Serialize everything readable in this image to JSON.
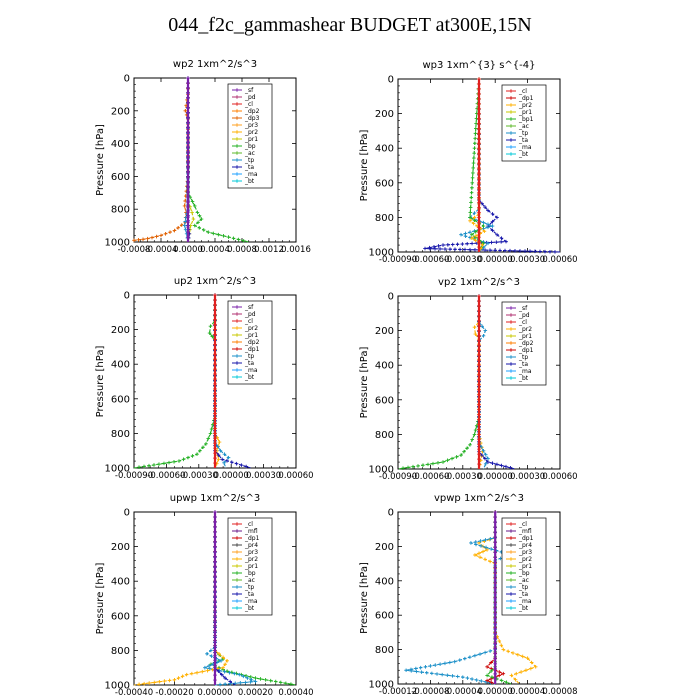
{
  "title": "044_f2c_gammashear  BUDGET at300E,15N",
  "colors": {
    "sf": "#7a1fa8",
    "pd": "#b03070",
    "cl": "#e02020",
    "dp1": "#cc0000",
    "dp2": "#ff7f00",
    "dp3": "#e06000",
    "dp4": "#cc2200",
    "pr1": "#c8c800",
    "pr2": "#ffb000",
    "pr3": "#ffa020",
    "bp": "#22b022",
    "bp1": "#22b022",
    "ac": "#5db82a",
    "tp": "#1a8fc8",
    "ta": "#1515aa",
    "ma": "#1ea0ff",
    "bt": "#00c8d8",
    "mfl": "#6a1a8a"
  },
  "chart_data": [
    {
      "id": "wp2",
      "type": "line",
      "title": "wp2   1xm^2/s^3",
      "ylabel": "Pressure [hPa]",
      "xlim": [
        -0.0008,
        0.0016
      ],
      "ylim": [
        1000,
        0
      ],
      "xticks": [
        "-0.0008",
        "-0.0004",
        "0.0000",
        "0.0004",
        "0.0008",
        "0.0012",
        "0.0016"
      ],
      "yticks": [
        "0",
        "200",
        "400",
        "600",
        "800",
        "1000"
      ],
      "legend": [
        "_sf",
        "_pd",
        "_cl",
        "_dp2",
        "_dp3",
        "_pr3",
        "_pr2",
        "_pr1",
        "_bp",
        "_ac",
        "_tp",
        "_ta",
        "_ma",
        "_bt"
      ],
      "series": [
        {
          "name": "_dp3",
          "color": "dp3",
          "p": [
            0,
            100,
            200,
            250,
            600,
            780,
            820,
            880,
            930,
            960,
            980,
            990,
            1000
          ],
          "v": [
            0,
            0,
            -4e-05,
            0,
            0,
            -5e-05,
            -3e-05,
            -4e-05,
            -0.0002,
            -0.0004,
            -0.0006,
            -0.0008,
            -0.0008
          ]
        },
        {
          "name": "_bp",
          "color": "bp",
          "p": [
            0,
            700,
            780,
            820,
            860,
            900,
            940,
            970,
            1000
          ],
          "v": [
            0,
            0,
            0.0001,
            0.00014,
            0.0002,
            0.0001,
            0.0003,
            0.0006,
            0.0009
          ]
        },
        {
          "name": "_pr1",
          "color": "pr1",
          "p": [
            0,
            750,
            820,
            860,
            900,
            950,
            1000
          ],
          "v": [
            0,
            0,
            6e-05,
            8e-05,
            4e-05,
            2e-05,
            0
          ]
        },
        {
          "name": "_tp",
          "color": "tp",
          "p": [
            0,
            800,
            850,
            900,
            950,
            1000
          ],
          "v": [
            0,
            0,
            -3e-05,
            -5e-05,
            -2e-05,
            0
          ]
        },
        {
          "name": "_ta",
          "color": "ta",
          "p": [
            0,
            900,
            950,
            1000
          ],
          "v": [
            0,
            0,
            2e-05,
            0
          ]
        },
        {
          "name": "_sf",
          "color": "sf",
          "p": [
            0,
            1000
          ],
          "v": [
            0,
            0
          ]
        }
      ]
    },
    {
      "id": "wp3",
      "type": "line",
      "title": "wp3   1xm^{3} s^{-4}",
      "ylabel": "Pressure [hPa]",
      "xlim": [
        -0.0009,
        0.0009
      ],
      "ylim": [
        1000,
        0
      ],
      "xticks": [
        "-0.00090",
        "-0.00060",
        "-0.00030",
        "0.00000",
        "0.00030",
        "0.00060"
      ],
      "yticks": [
        "0",
        "200",
        "400",
        "600",
        "800",
        "1000"
      ],
      "legend": [
        "_cl",
        "_dp1",
        "_pr2",
        "_pr1",
        "_bp1",
        "_ac",
        "_tp",
        "_ta",
        "_ma",
        "_bt"
      ],
      "series": [
        {
          "name": "_ta",
          "color": "ta",
          "p": [
            0,
            700,
            760,
            800,
            850,
            900,
            940,
            960,
            980,
            1000
          ],
          "v": [
            0,
            0,
            0.0001,
            0.0002,
            0.0001,
            0.0002,
            0.0003,
            -0.0004,
            -0.0006,
            0.0009
          ]
        },
        {
          "name": "_tp",
          "color": "tp",
          "p": [
            0,
            750,
            800,
            850,
            900,
            950,
            1000
          ],
          "v": [
            0,
            0,
            -0.0001,
            0.00015,
            -0.0002,
            0.0001,
            0
          ]
        },
        {
          "name": "_bp1",
          "color": "bp1",
          "p": [
            0,
            800,
            850,
            900,
            950,
            1000
          ],
          "v": [
            0,
            -0.0001,
            5e-05,
            -8e-05,
            5e-05,
            0
          ]
        },
        {
          "name": "_pr2",
          "color": "pr2",
          "p": [
            0,
            780,
            820,
            880,
            920,
            960,
            1000
          ],
          "v": [
            0,
            0,
            -0.0001,
            6e-05,
            -8e-05,
            4e-05,
            0
          ]
        },
        {
          "name": "_cl",
          "color": "cl",
          "p": [
            0,
            1000
          ],
          "v": [
            0,
            0
          ]
        }
      ]
    },
    {
      "id": "up2",
      "type": "line",
      "title": "up2   1xm^2/s^3",
      "ylabel": "Pressure [hPa]",
      "xlim": [
        -0.0009,
        0.0009
      ],
      "ylim": [
        1000,
        0
      ],
      "xticks": [
        "-0.00090",
        "-0.00060",
        "-0.00030",
        "0.00000",
        "0.00030",
        "0.00060"
      ],
      "yticks": [
        "0",
        "200",
        "400",
        "600",
        "800",
        "1000"
      ],
      "legend": [
        "_sf",
        "_pd",
        "_cl",
        "_pr2",
        "_pr1",
        "_dp2",
        "_dp1",
        "_tp",
        "_ta",
        "_ma",
        "_bt"
      ],
      "series": [
        {
          "name": "_dp2",
          "color": "bp",
          "p": [
            0,
            150,
            180,
            220,
            260,
            700,
            800,
            860,
            920,
            960,
            1000
          ],
          "v": [
            0,
            0,
            -5e-05,
            -6e-05,
            0,
            0,
            -5e-05,
            -0.0001,
            -0.0002,
            -0.0004,
            -0.0009
          ]
        },
        {
          "name": "_pr2",
          "color": "pr2",
          "p": [
            0,
            800,
            850,
            900,
            950,
            1000
          ],
          "v": [
            0,
            0,
            5e-05,
            2e-05,
            4e-05,
            0
          ]
        },
        {
          "name": "_tp",
          "color": "tp",
          "p": [
            0,
            850,
            900,
            940,
            970,
            1000
          ],
          "v": [
            0,
            0,
            6e-05,
            0.00015,
            0.0001,
            0.00012
          ]
        },
        {
          "name": "_ta",
          "color": "ta",
          "p": [
            0,
            900,
            950,
            1000
          ],
          "v": [
            0,
            0,
            8e-05,
            0.0004
          ]
        },
        {
          "name": "_sf",
          "color": "cl",
          "p": [
            0,
            1000
          ],
          "v": [
            0,
            0
          ]
        }
      ]
    },
    {
      "id": "vp2",
      "type": "line",
      "title": "vp2   1xm^2/s^3",
      "ylabel": "Pressure [hPa]",
      "xlim": [
        -0.0009,
        0.0009
      ],
      "ylim": [
        1000,
        0
      ],
      "xticks": [
        "-0.00090",
        "-0.00060",
        "-0.00030",
        "0.00000",
        "0.00030",
        "0.00060"
      ],
      "yticks": [
        "0",
        "200",
        "400",
        "600",
        "800",
        "1000"
      ],
      "legend": [
        "_sf",
        "_pd",
        "_cl",
        "_pr2",
        "_pr1",
        "_dp2",
        "_dp1",
        "_tp",
        "_ta",
        "_ma",
        "_bt"
      ],
      "series": [
        {
          "name": "_dp2",
          "color": "bp",
          "p": [
            0,
            700,
            800,
            860,
            920,
            960,
            1000
          ],
          "v": [
            0,
            0,
            -5e-05,
            -0.0001,
            -0.0002,
            -0.0004,
            -0.0009
          ]
        },
        {
          "name": "_pr2",
          "color": "pr2",
          "p": [
            0,
            150,
            180,
            220,
            250,
            800,
            900,
            950,
            1000
          ],
          "v": [
            0,
            0,
            -5e-05,
            -4e-05,
            0,
            0,
            4e-05,
            2e-05,
            0
          ]
        },
        {
          "name": "_tp",
          "color": "tp",
          "p": [
            0,
            150,
            200,
            230,
            260,
            850,
            940,
            1000
          ],
          "v": [
            0,
            0,
            7e-05,
            5e-05,
            0,
            0,
            0.0001,
            5e-05
          ]
        },
        {
          "name": "_ta",
          "color": "ta",
          "p": [
            0,
            900,
            960,
            1000
          ],
          "v": [
            0,
            0,
            0.0001,
            0.0004
          ]
        },
        {
          "name": "_sf",
          "color": "cl",
          "p": [
            0,
            1000
          ],
          "v": [
            0,
            0
          ]
        }
      ]
    },
    {
      "id": "upwp",
      "type": "line",
      "title": "upwp   1xm^2/s^3",
      "ylabel": "Pressure [hPa]",
      "xlim": [
        -0.0004,
        0.0004
      ],
      "ylim": [
        1000,
        0
      ],
      "xticks": [
        "-0.00040",
        "-0.00020",
        "0.00000",
        "0.00020",
        "0.00040"
      ],
      "yticks": [
        "0",
        "200",
        "400",
        "600",
        "800",
        "1000"
      ],
      "legend": [
        "_cl",
        "_mfl",
        "_dp1",
        "_pr4",
        "_pr3",
        "_pr2",
        "_pr1",
        "_bp",
        "_ac",
        "_tp",
        "_ta",
        "_ma",
        "_bt"
      ],
      "series": [
        {
          "name": "_bp",
          "color": "bp",
          "p": [
            0,
            800,
            850,
            880,
            920,
            960,
            1000
          ],
          "v": [
            0,
            0,
            4e-05,
            -2e-05,
            6e-05,
            0.0002,
            0.0004
          ]
        },
        {
          "name": "_tp",
          "color": "tp",
          "p": [
            0,
            780,
            820,
            860,
            900,
            940,
            980,
            1000
          ],
          "v": [
            0,
            0,
            -4e-05,
            3e-05,
            -5e-05,
            0.00012,
            0.0002,
            0
          ]
        },
        {
          "name": "_pr2",
          "color": "pr2",
          "p": [
            0,
            800,
            860,
            900,
            940,
            970,
            1000
          ],
          "v": [
            0,
            0,
            6e-05,
            4e-05,
            -0.00014,
            -0.0002,
            -0.0004
          ]
        },
        {
          "name": "_ta",
          "color": "ta",
          "p": [
            0,
            900,
            960,
            1000
          ],
          "v": [
            0,
            0,
            5e-05,
            0.0001
          ]
        },
        {
          "name": "_cl",
          "color": "sf",
          "p": [
            0,
            1000
          ],
          "v": [
            0,
            0
          ]
        }
      ]
    },
    {
      "id": "vpwp",
      "type": "line",
      "title": "vpwp   1xm^2/s^3",
      "ylabel": "Pressure [hPa]",
      "xlim": [
        -0.00012,
        8e-05
      ],
      "ylim": [
        1000,
        0
      ],
      "xticks": [
        "-0.00012",
        "-0.00008",
        "-0.00004",
        "0.00000",
        "0.00004",
        "0.00008"
      ],
      "yticks": [
        "0",
        "200",
        "400",
        "600",
        "800",
        "1000"
      ],
      "legend": [
        "_cl",
        "_mfl",
        "_dp1",
        "_pr4",
        "_pr3",
        "_pr2",
        "_pr1",
        "_bp",
        "_ac",
        "_tp",
        "_ta",
        "_ma",
        "_bt"
      ],
      "series": [
        {
          "name": "_pr2",
          "color": "pr2",
          "p": [
            0,
            150,
            180,
            220,
            250,
            300,
            700,
            800,
            850,
            900,
            950,
            1000
          ],
          "v": [
            0,
            0,
            -2e-05,
            -1e-05,
            -2.5e-05,
            0,
            0,
            1e-05,
            4e-05,
            5e-05,
            2e-05,
            3e-05
          ]
        },
        {
          "name": "_tp",
          "color": "tp",
          "p": [
            0,
            150,
            180,
            250,
            280,
            800,
            870,
            920,
            960,
            1000
          ],
          "v": [
            0,
            0,
            -3e-05,
            2e-05,
            0,
            0,
            -5e-05,
            -0.00011,
            -4e-05,
            0
          ]
        },
        {
          "name": "_dp1",
          "color": "dp1",
          "p": [
            0,
            850,
            900,
            940,
            980,
            1000
          ],
          "v": [
            0,
            0,
            -1e-05,
            1e-05,
            -1e-05,
            0
          ]
        },
        {
          "name": "_bp",
          "color": "bp",
          "p": [
            0,
            900,
            950,
            1000
          ],
          "v": [
            0,
            0,
            -1e-05,
            2e-05
          ]
        },
        {
          "name": "_cl",
          "color": "sf",
          "p": [
            0,
            1000
          ],
          "v": [
            0,
            0
          ]
        }
      ]
    }
  ]
}
